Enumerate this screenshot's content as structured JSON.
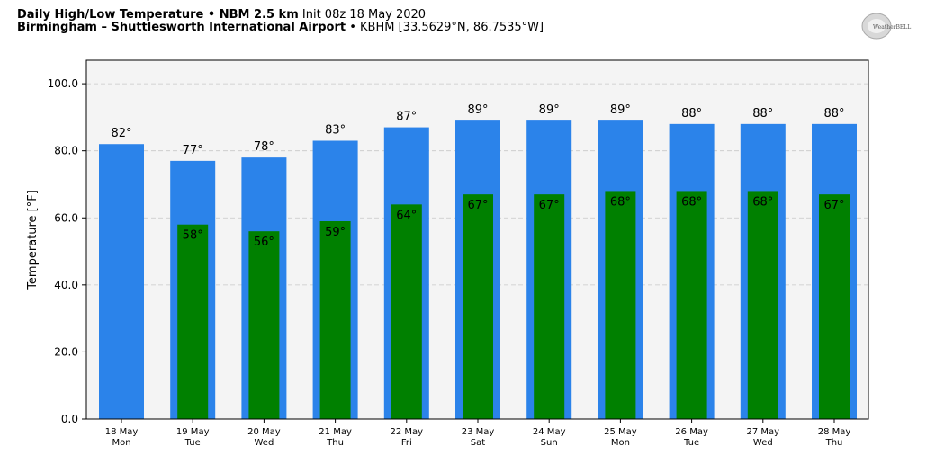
{
  "header": {
    "line1_bold": "Daily High/Low Temperature • NBM 2.5 km",
    "line1_rest": "Init 08z 18 May 2020",
    "line2_bold": "Birmingham – Shuttlesworth International Airport",
    "line2_rest": "• KBHM [33.5629°N, 86.7535°W]"
  },
  "logo": {
    "text": "WeatherBELL",
    "icon": "weatherbell-logo"
  },
  "chart_data": {
    "type": "bar",
    "ylabel": "Temperature [°F]",
    "ylim": [
      0,
      107
    ],
    "yticks": [
      "0.0",
      "20.0",
      "40.0",
      "60.0",
      "80.0",
      "100.0"
    ],
    "grid": true,
    "categories": [
      {
        "date": "18 May",
        "day": "Mon"
      },
      {
        "date": "19 May",
        "day": "Tue"
      },
      {
        "date": "20 May",
        "day": "Wed"
      },
      {
        "date": "21 May",
        "day": "Thu"
      },
      {
        "date": "22 May",
        "day": "Fri"
      },
      {
        "date": "23 May",
        "day": "Sat"
      },
      {
        "date": "24 May",
        "day": "Sun"
      },
      {
        "date": "25 May",
        "day": "Mon"
      },
      {
        "date": "26 May",
        "day": "Tue"
      },
      {
        "date": "27 May",
        "day": "Wed"
      },
      {
        "date": "28 May",
        "day": "Thu"
      }
    ],
    "series": [
      {
        "key": "high",
        "color": "#2b83ea",
        "values": [
          82,
          77,
          78,
          83,
          87,
          89,
          89,
          89,
          88,
          88,
          88
        ],
        "labels": [
          "82°",
          "77°",
          "78°",
          "83°",
          "87°",
          "89°",
          "89°",
          "89°",
          "88°",
          "88°",
          "88°"
        ]
      },
      {
        "key": "low",
        "color": "#008000",
        "values": [
          null,
          58,
          56,
          59,
          64,
          67,
          67,
          68,
          68,
          68,
          67
        ],
        "labels": [
          "",
          "58°",
          "56°",
          "59°",
          "64°",
          "67°",
          "67°",
          "68°",
          "68°",
          "68°",
          "67°"
        ]
      }
    ]
  }
}
